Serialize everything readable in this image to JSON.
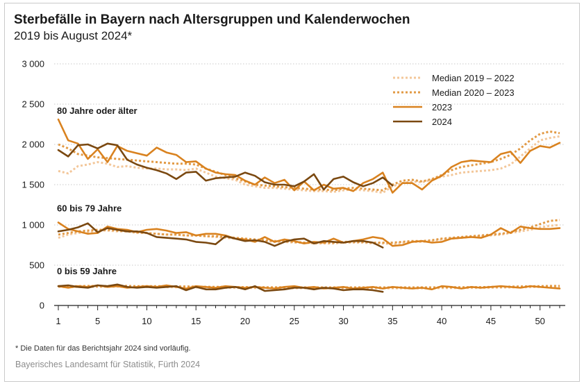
{
  "header": {
    "title": "Sterbefälle in Bayern nach Altersgruppen und Kalenderwochen",
    "subtitle": "2019 bis August 2024*"
  },
  "footnote": "* Die Daten für das Berichtsjahr 2024 sind vorläufig.",
  "source": "Bayerisches Landesamt für Statistik, Fürth 2024",
  "colors": {
    "median_2019_2022": "#f3c79a",
    "median_2020_2023": "#e29a45",
    "y2023": "#d9821f",
    "y2024": "#7a4810",
    "axis": "#222222",
    "grid": "#c8c8c8"
  },
  "chart_data": {
    "type": "line",
    "title": "Sterbefälle in Bayern nach Altersgruppen und Kalenderwochen",
    "subtitle": "2019 bis August 2024*",
    "xlabel": "",
    "ylabel": "",
    "xlim": [
      1,
      52
    ],
    "ylim": [
      0,
      3000
    ],
    "x_ticks": [
      1,
      5,
      10,
      15,
      20,
      25,
      30,
      35,
      40,
      45,
      50
    ],
    "y_ticks": [
      0,
      500,
      1000,
      1500,
      2000,
      2500,
      3000
    ],
    "y_tick_labels": [
      "0",
      "500",
      "1 000",
      "1 500",
      "2 000",
      "2 500",
      "3 000"
    ],
    "grid": true,
    "legend_position": "top-right",
    "legend": [
      "Median 2019 – 2022",
      "Median 2020 – 2023",
      "2023",
      "2024"
    ],
    "group_labels": [
      {
        "text": "80 Jahre oder älter",
        "week": 1,
        "value": 2380
      },
      {
        "text": "60 bis 79 Jahre",
        "week": 1,
        "value": 1170
      },
      {
        "text": "0 bis 59 Jahre",
        "week": 1,
        "value": 390
      }
    ],
    "groups": [
      {
        "name": "80 Jahre oder älter",
        "series": [
          {
            "name": "Median 2019 – 2022",
            "values": [
              1670,
              1640,
              1730,
              1750,
              1780,
              1760,
              1720,
              1730,
              1710,
              1700,
              1700,
              1690,
              1690,
              1680,
              1700,
              1650,
              1600,
              1580,
              1560,
              1500,
              1480,
              1460,
              1460,
              1450,
              1440,
              1430,
              1420,
              1420,
              1410,
              1430,
              1440,
              1430,
              1420,
              1400,
              1480,
              1520,
              1540,
              1530,
              1560,
              1600,
              1620,
              1650,
              1660,
              1670,
              1680,
              1700,
              1750,
              1850,
              1950,
              2050,
              2080,
              2100
            ]
          },
          {
            "name": "Median 2020 – 2023",
            "values": [
              2000,
              1950,
              1880,
              1860,
              1840,
              1830,
              1820,
              1810,
              1800,
              1790,
              1780,
              1770,
              1760,
              1760,
              1750,
              1700,
              1660,
              1620,
              1580,
              1540,
              1500,
              1490,
              1480,
              1470,
              1460,
              1450,
              1440,
              1440,
              1430,
              1450,
              1460,
              1450,
              1440,
              1430,
              1500,
              1550,
              1560,
              1540,
              1570,
              1620,
              1680,
              1720,
              1740,
              1760,
              1780,
              1820,
              1870,
              1950,
              2050,
              2130,
              2160,
              2140
            ]
          },
          {
            "name": "2023",
            "values": [
              2310,
              2050,
              2010,
              1820,
              1940,
              1780,
              1980,
              1920,
              1890,
              1860,
              1960,
              1900,
              1870,
              1780,
              1790,
              1700,
              1650,
              1630,
              1620,
              1550,
              1500,
              1590,
              1520,
              1560,
              1430,
              1540,
              1430,
              1500,
              1450,
              1460,
              1420,
              1520,
              1570,
              1650,
              1400,
              1520,
              1520,
              1440,
              1550,
              1610,
              1720,
              1780,
              1800,
              1790,
              1780,
              1880,
              1910,
              1770,
              1920,
              1980,
              1960,
              2020
            ]
          },
          {
            "name": "2024",
            "values": [
              1930,
              1850,
              1990,
              2000,
              1950,
              2010,
              1990,
              1810,
              1750,
              1710,
              1680,
              1640,
              1570,
              1650,
              1660,
              1550,
              1580,
              1590,
              1600,
              1650,
              1610,
              1530,
              1500,
              1500,
              1480,
              1540,
              1630,
              1440,
              1570,
              1600,
              1530,
              1480,
              1520,
              1590,
              1490
            ]
          }
        ]
      },
      {
        "name": "60 bis 79 Jahre",
        "series": [
          {
            "name": "Median 2019 – 2022",
            "values": [
              840,
              880,
              900,
              910,
              930,
              930,
              920,
              920,
              900,
              900,
              890,
              880,
              880,
              870,
              870,
              860,
              850,
              840,
              830,
              820,
              810,
              800,
              790,
              790,
              780,
              780,
              770,
              770,
              770,
              780,
              780,
              780,
              770,
              770,
              760,
              780,
              790,
              790,
              800,
              820,
              830,
              840,
              850,
              860,
              870,
              880,
              900,
              920,
              940,
              970,
              990,
              1000
            ]
          },
          {
            "name": "Median 2020 – 2023",
            "values": [
              880,
              900,
              920,
              930,
              940,
              940,
              930,
              920,
              910,
              900,
              890,
              880,
              880,
              870,
              870,
              860,
              860,
              850,
              840,
              830,
              820,
              810,
              800,
              800,
              790,
              780,
              780,
              780,
              780,
              790,
              790,
              790,
              780,
              780,
              780,
              790,
              800,
              800,
              810,
              830,
              840,
              850,
              860,
              870,
              880,
              890,
              910,
              940,
              970,
              1010,
              1050,
              1060
            ]
          },
          {
            "name": "2023",
            "values": [
              1030,
              950,
              920,
              890,
              900,
              980,
              950,
              940,
              910,
              940,
              950,
              930,
              900,
              910,
              870,
              890,
              890,
              870,
              830,
              820,
              790,
              850,
              790,
              820,
              800,
              770,
              790,
              780,
              830,
              780,
              800,
              820,
              850,
              830,
              740,
              750,
              790,
              800,
              780,
              790,
              830,
              840,
              850,
              840,
              880,
              960,
              900,
              980,
              960,
              950,
              950,
              960
            ]
          },
          {
            "name": "2024",
            "values": [
              920,
              940,
              970,
              1020,
              910,
              960,
              940,
              920,
              920,
              900,
              850,
              840,
              830,
              820,
              790,
              780,
              760,
              860,
              830,
              800,
              810,
              790,
              740,
              790,
              820,
              830,
              770,
              800,
              790,
              780,
              800,
              800,
              780,
              720
            ]
          }
        ]
      },
      {
        "name": "0 bis 59 Jahre",
        "series": [
          {
            "name": "Median 2019 – 2022",
            "values": [
              230,
              228,
              230,
              232,
              230,
              232,
              234,
              232,
              230,
              230,
              230,
              228,
              226,
              226,
              224,
              222,
              220,
              220,
              218,
              218,
              216,
              216,
              215,
              215,
              215,
              214,
              214,
              214,
              214,
              214,
              214,
              214,
              214,
              214,
              214,
              214,
              214,
              214,
              214,
              216,
              216,
              216,
              218,
              218,
              220,
              222,
              224,
              226,
              228,
              230,
              232,
              232
            ]
          },
          {
            "name": "Median 2020 – 2023",
            "values": [
              240,
              238,
              240,
              242,
              240,
              242,
              244,
              242,
              240,
              240,
              240,
              238,
              236,
              236,
              234,
              232,
              230,
              230,
              228,
              228,
              226,
              226,
              225,
              225,
              225,
              224,
              224,
              224,
              224,
              224,
              224,
              224,
              224,
              224,
              224,
              224,
              224,
              224,
              224,
              226,
              226,
              226,
              228,
              228,
              230,
              232,
              234,
              236,
              238,
              240,
              242,
              242
            ]
          },
          {
            "name": "2023",
            "values": [
              240,
              220,
              240,
              230,
              250,
              230,
              240,
              220,
              230,
              240,
              230,
              250,
              230,
              210,
              240,
              230,
              220,
              240,
              230,
              220,
              230,
              220,
              210,
              230,
              240,
              220,
              230,
              210,
              220,
              230,
              210,
              220,
              230,
              210,
              230,
              220,
              210,
              220,
              200,
              240,
              230,
              210,
              230,
              220,
              230,
              240,
              230,
              220,
              240,
              230,
              220,
              210
            ]
          },
          {
            "name": "2024",
            "values": [
              240,
              250,
              230,
              220,
              250,
              240,
              260,
              230,
              220,
              230,
              220,
              230,
              240,
              190,
              230,
              200,
              200,
              220,
              230,
              200,
              240,
              180,
              190,
              200,
              220,
              220,
              200,
              220,
              210,
              190,
              200,
              200,
              190,
              170
            ]
          }
        ]
      }
    ]
  }
}
